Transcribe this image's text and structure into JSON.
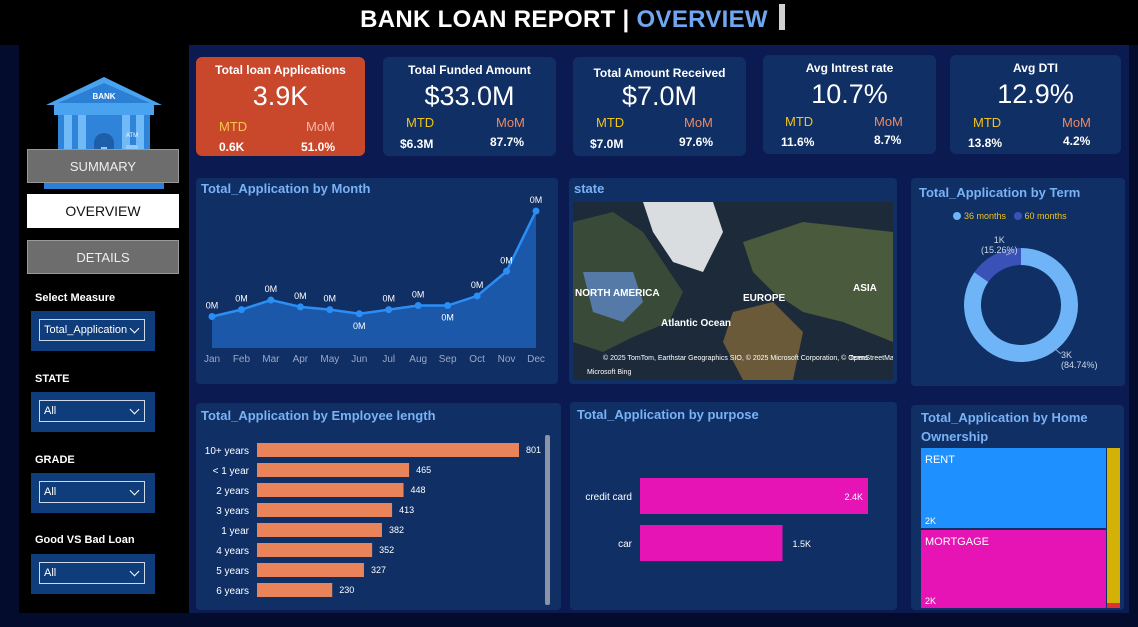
{
  "header": {
    "title_main": "BANK LOAN REPORT |",
    "title_highlight": "OVERVIEW"
  },
  "sidebar": {
    "logo_text": "BANK",
    "logo_atm": "ATM",
    "nav": {
      "summary": "SUMMARY",
      "overview": "OVERVIEW",
      "details": "DETAILS"
    },
    "filters": {
      "measure": {
        "label": "Select Measure",
        "value": "Total_Application"
      },
      "state": {
        "label": "STATE",
        "value": "All"
      },
      "grade": {
        "label": "GRADE",
        "value": "All"
      },
      "good_bad": {
        "label": "Good VS Bad Loan",
        "value": "All"
      }
    }
  },
  "kpis": [
    {
      "title": "Total loan Applications",
      "value": "3.9K",
      "mtd_label": "MTD",
      "mom_label": "MoM",
      "mtd": "0.6K",
      "mom": "51.0%"
    },
    {
      "title": "Total Funded Amount",
      "value": "$33.0M",
      "mtd_label": "MTD",
      "mom_label": "MoM",
      "mtd": "$6.3M",
      "mom": "87.7%"
    },
    {
      "title": "Total Amount Received",
      "value": "$7.0M",
      "mtd_label": "MTD",
      "mom_label": "MoM",
      "mtd": "$7.0M",
      "mom": "97.6%"
    },
    {
      "title": "Avg Intrest rate",
      "value": "10.7%",
      "mtd_label": "MTD",
      "mom_label": "MoM",
      "mtd": "11.6%",
      "mom": "8.7%"
    },
    {
      "title": "Avg DTI",
      "value": "12.9%",
      "mtd_label": "MTD",
      "mom_label": "MoM",
      "mtd": "13.8%",
      "mom": "4.2%"
    }
  ],
  "colors": {
    "kpi_red": "#c9472b",
    "panel": "#0f2f65",
    "accent": "#79b2f5",
    "bar_orange": "#e9845a",
    "bar_pink": "#e614b4",
    "treemap_blue": "#1e90ff",
    "treemap_yellow": "#d4b106"
  },
  "map": {
    "title": "state",
    "labels": {
      "na": "NORTH AMERICA",
      "eu": "EUROPE",
      "asia": "ASIA",
      "ocean": "Atlantic Ocean"
    },
    "attribution": "© 2025 TomTom, Earthstar Geographics SIO, © 2025 Microsoft Corporation, © OpenStreetMap",
    "terms": "Terms",
    "brand": "Microsoft Bing"
  },
  "chart_data": [
    {
      "type": "area",
      "title": "Total_Application by Month",
      "categories": [
        "Jan",
        "Feb",
        "Mar",
        "Apr",
        "May",
        "Jun",
        "Jul",
        "Aug",
        "Sep",
        "Oct",
        "Nov",
        "Dec"
      ],
      "values": [
        0.23,
        0.28,
        0.35,
        0.3,
        0.28,
        0.25,
        0.28,
        0.31,
        0.31,
        0.38,
        0.56,
        1.0
      ],
      "data_labels": [
        "0M",
        "0M",
        "0M",
        "0M",
        "0M",
        "0M",
        "0M",
        "0M",
        "0M",
        "0M",
        "0M",
        "0M"
      ]
    },
    {
      "type": "pie",
      "title": "Total_Application by Term",
      "legend": [
        "36 months",
        "60 months"
      ],
      "series": [
        {
          "name": "36 months",
          "value": 3,
          "label_value": "3K",
          "label_pct": "(84.74%)",
          "color": "#6eb4f7"
        },
        {
          "name": "60 months",
          "value": 1,
          "label_value": "1K",
          "label_pct": "(15.26%)",
          "color": "#3a52b8"
        }
      ],
      "pct": [
        84.74,
        15.26
      ]
    },
    {
      "type": "bar",
      "title": "Total_Application by Employee length",
      "categories": [
        "10+ years",
        "< 1 year",
        "2 years",
        "3 years",
        "1 year",
        "4 years",
        "5 years",
        "6 years"
      ],
      "values": [
        801,
        465,
        448,
        413,
        382,
        352,
        327,
        230
      ]
    },
    {
      "type": "bar",
      "title": "Total_Application by purpose",
      "categories": [
        "credit card",
        "car"
      ],
      "values": [
        2.4,
        1.5
      ],
      "data_labels": [
        "2.4K",
        "1.5K"
      ]
    },
    {
      "type": "heatmap",
      "title": "Total_Application by Home Ownership",
      "categories": [
        "RENT",
        "MORTGAGE"
      ],
      "data_labels": [
        "2K",
        "2K"
      ]
    }
  ]
}
